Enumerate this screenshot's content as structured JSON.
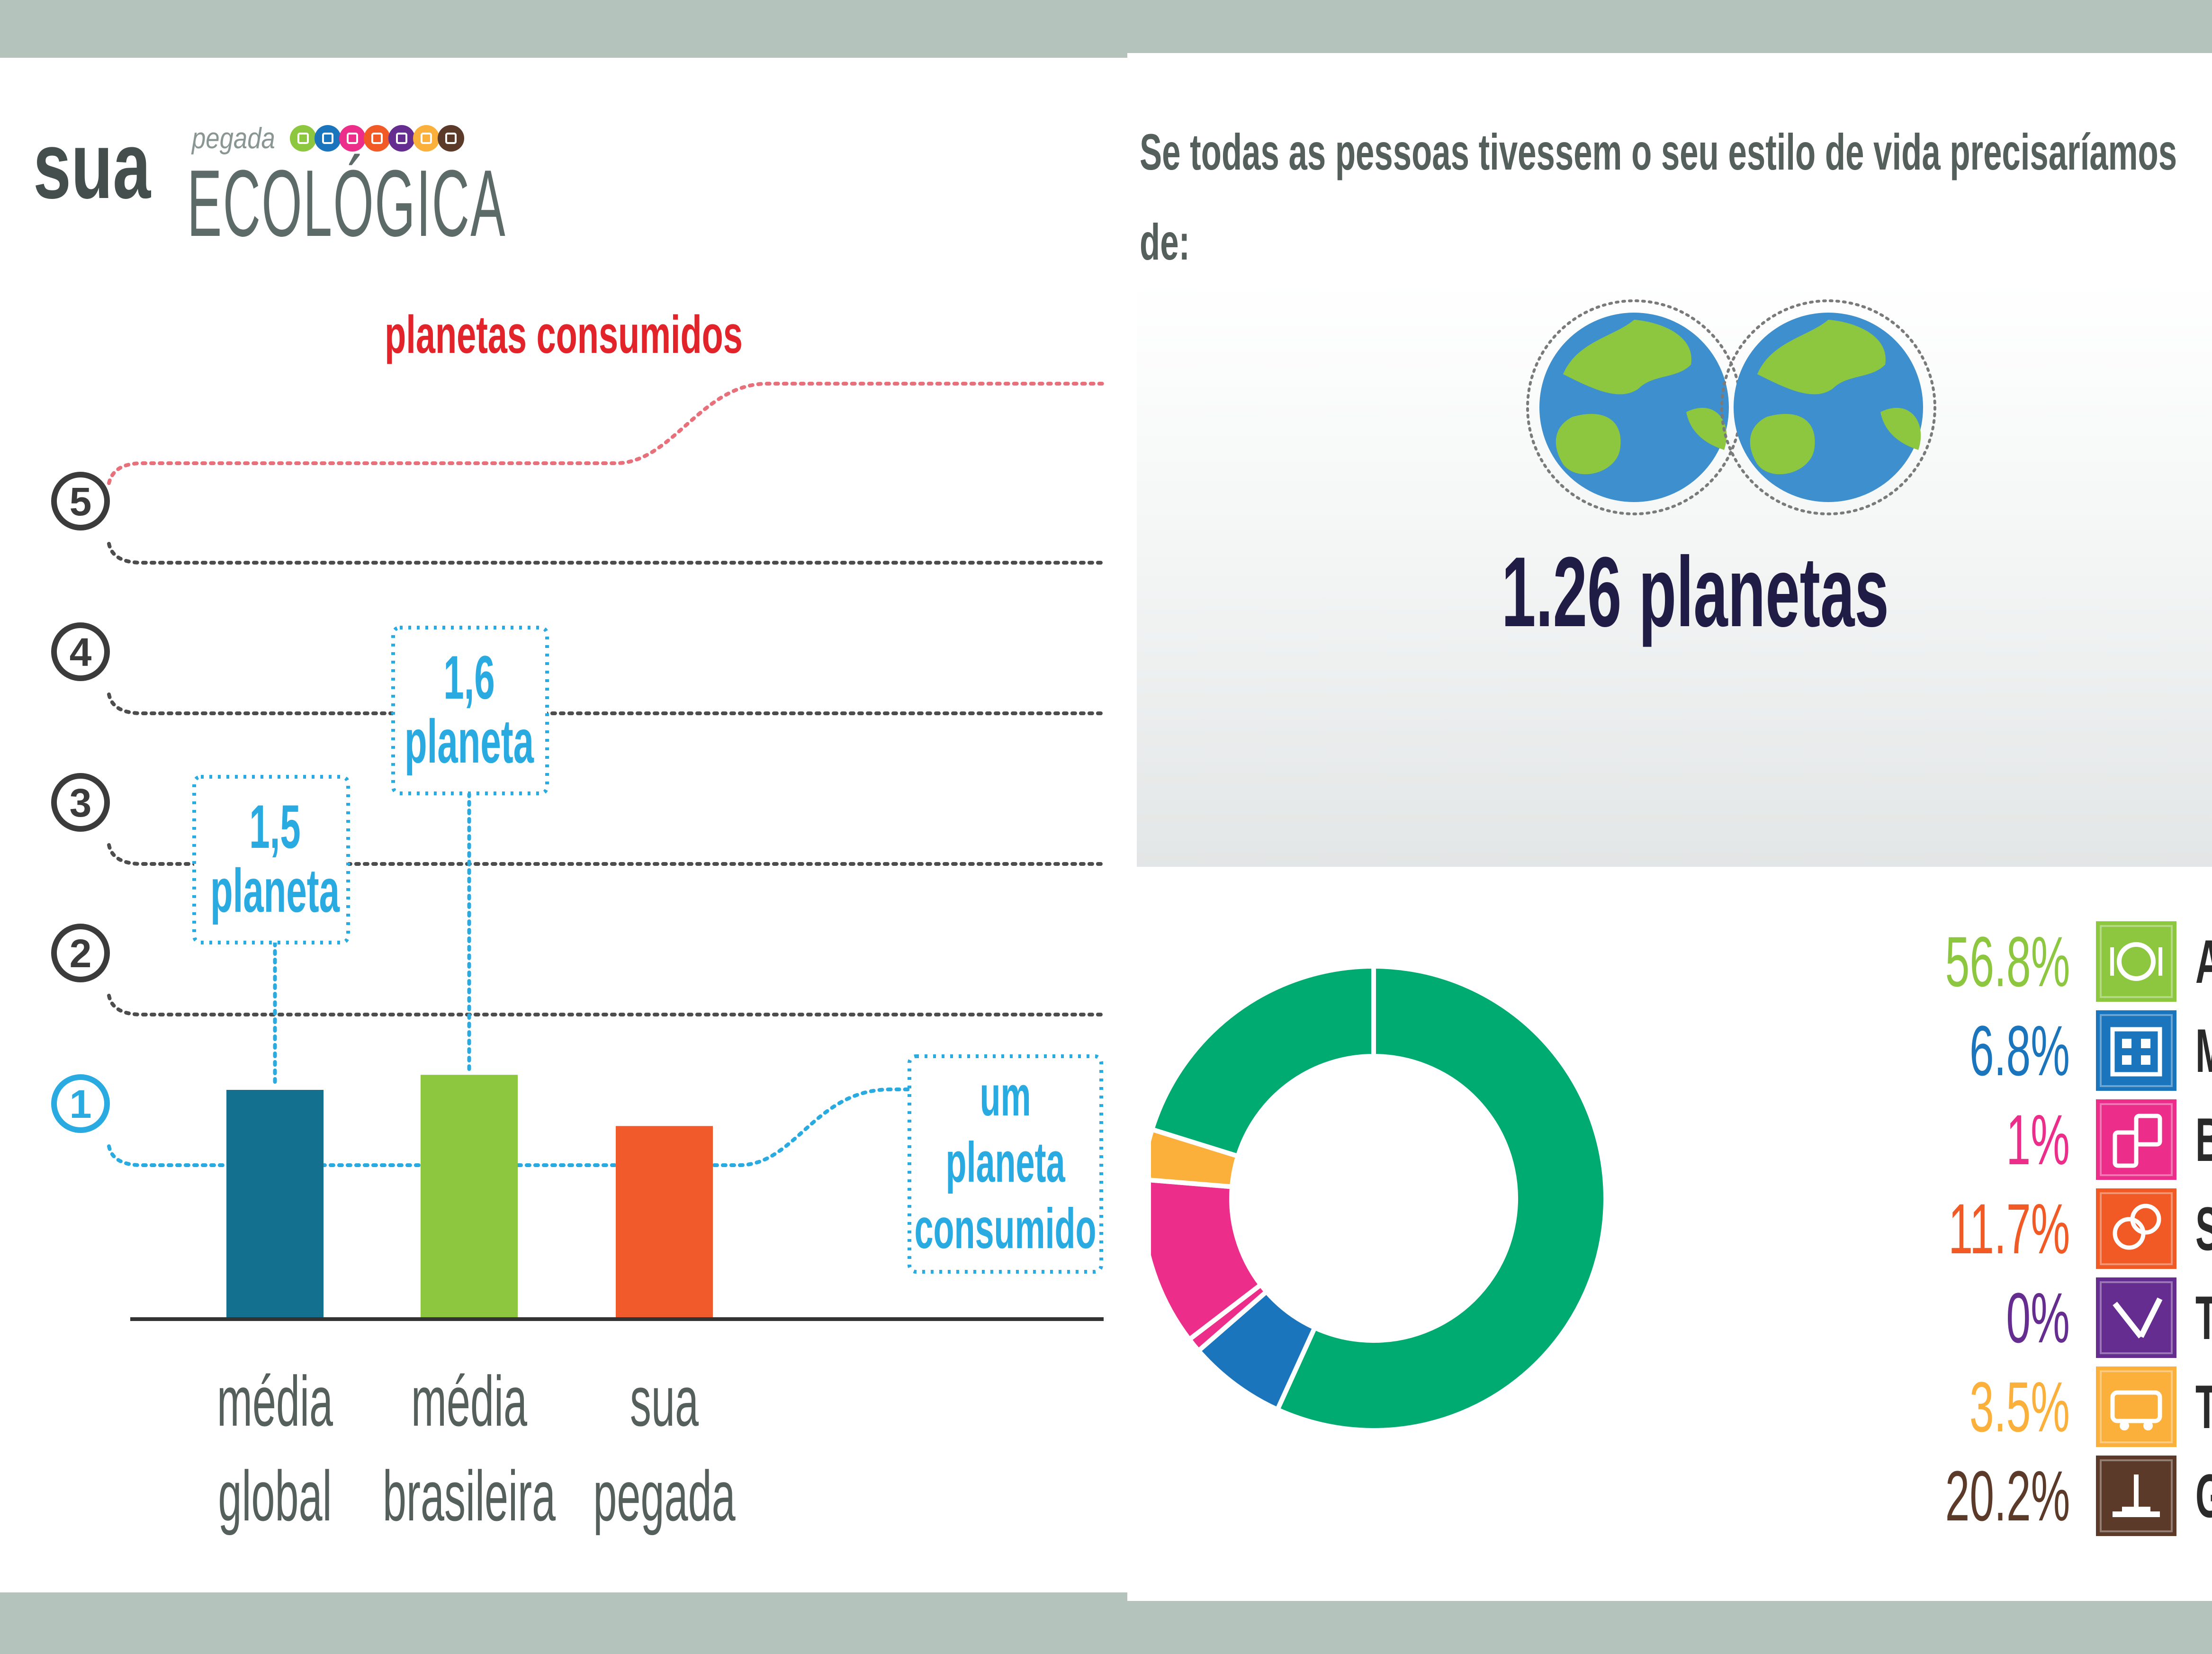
{
  "left": {
    "logo": {
      "sua": "sua",
      "pegada": "pegada",
      "ecologica": "ECOLÓGICA",
      "icon_colors": [
        "#8dc63f",
        "#1b75bc",
        "#ec2e8a",
        "#f15a24",
        "#662d91",
        "#fbb03b",
        "#5b3a29"
      ]
    }
  },
  "right": {
    "headline_line1": "Se todas as pessoas tivessem o seu estilo de vida precisaríamos",
    "headline_line2": "de:",
    "planets_label": "1.26 planetas"
  },
  "chart_data": [
    {
      "type": "bar",
      "title": "planetas consumidos",
      "categories": [
        "média global",
        "média brasileira",
        "sua pegada"
      ],
      "category_lines": [
        [
          "média",
          "global"
        ],
        [
          "média",
          "brasileira"
        ],
        [
          "sua",
          "pegada"
        ]
      ],
      "values": [
        1.5,
        1.6,
        1.26
      ],
      "bar_colors": [
        "#13718f",
        "#8dc63f",
        "#f15a2b"
      ],
      "ylim": [
        0,
        5
      ],
      "y_ticks": [
        "1",
        "2",
        "3",
        "4",
        "5"
      ],
      "callouts": [
        {
          "category": "média global",
          "lines": [
            "1,5",
            "planeta"
          ]
        },
        {
          "category": "média brasileira",
          "lines": [
            "1,6",
            "planeta"
          ]
        }
      ],
      "reference_label": [
        "um",
        "planeta",
        "consumido"
      ],
      "title_color": "#e2232a",
      "accent_color": "#29abe2"
    },
    {
      "type": "pie",
      "donut": true,
      "categories": [
        "Alimentação",
        "Moradia",
        "Bens",
        "Serviço",
        "Tabaco",
        "Transporte",
        "Governo"
      ],
      "values": [
        56.8,
        6.8,
        1,
        11.7,
        0,
        3.5,
        20.2
      ],
      "percent_labels": [
        "56.8%",
        "6.8%",
        "1%",
        "11.7%",
        "0%",
        "3.5%",
        "20.2%"
      ],
      "colors": [
        "#8dc63f",
        "#1b75bc",
        "#ec2e8a",
        "#f15a24",
        "#662d91",
        "#fbb03b",
        "#5b3a29"
      ],
      "slice_colors": [
        "#00ab72",
        "#1b75bc",
        "#ec2e8a",
        "#ec2e8a",
        "#662d91",
        "#fbb03b",
        "#00ab72"
      ],
      "icons": [
        "plate-icon",
        "house-icon",
        "goods-icon",
        "service-icon",
        "tobacco-icon",
        "transport-icon",
        "government-icon"
      ],
      "legend_position": "right"
    }
  ]
}
